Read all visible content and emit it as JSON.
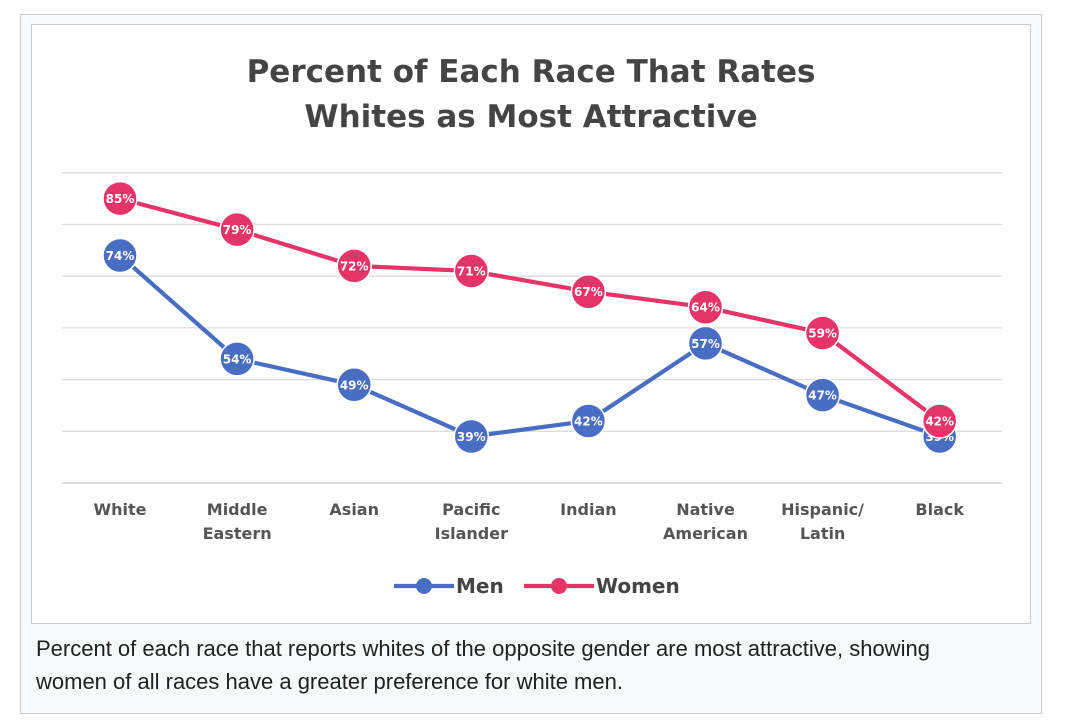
{
  "chart_data": {
    "type": "line",
    "title": [
      "Percent of Each Race That Rates",
      "Whites as Most Attractive"
    ],
    "categories": [
      [
        "White"
      ],
      [
        "Middle",
        "Eastern"
      ],
      [
        "Asian"
      ],
      [
        "Pacific",
        "Islander"
      ],
      [
        "Indian"
      ],
      [
        "Native",
        "American"
      ],
      [
        "Hispanic/",
        "Latin"
      ],
      [
        "Black"
      ]
    ],
    "series": [
      {
        "name": "Men",
        "color": "#4a6dc4",
        "values": [
          74,
          54,
          49,
          39,
          42,
          57,
          47,
          39
        ]
      },
      {
        "name": "Women",
        "color": "#e43468",
        "values": [
          85,
          79,
          72,
          71,
          67,
          64,
          59,
          42
        ]
      }
    ],
    "value_suffix": "%",
    "ylim": [
      30,
      90
    ],
    "grid": true,
    "legend": "bottom-center"
  },
  "caption": "Percent of each race that reports whites of the opposite gender are most attractive, showing women of all races have a greater preference for white men."
}
